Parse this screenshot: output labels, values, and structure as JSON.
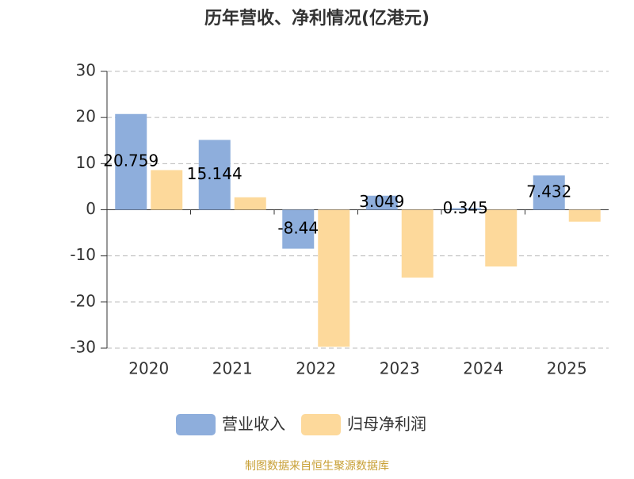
{
  "chart_data": {
    "type": "bar",
    "title": "历年营收、净利情况(亿港元)",
    "categories": [
      "2020",
      "2021",
      "2022",
      "2023",
      "2024",
      "2025"
    ],
    "series": [
      {
        "name": "营业收入",
        "color": "#8eaedc",
        "values": [
          20.759,
          15.144,
          -8.44,
          3.049,
          0.345,
          7.432
        ],
        "labels": true
      },
      {
        "name": "归母净利润",
        "color": "#fdd99b",
        "values": [
          8.6,
          2.7,
          -29.7,
          -14.7,
          -12.3,
          -2.6
        ]
      }
    ],
    "ylim": [
      -30,
      30
    ],
    "yticks": [
      -30,
      -20,
      -10,
      0,
      10,
      20,
      30
    ],
    "grid": true,
    "source": "制图数据来自恒生聚源数据库"
  }
}
